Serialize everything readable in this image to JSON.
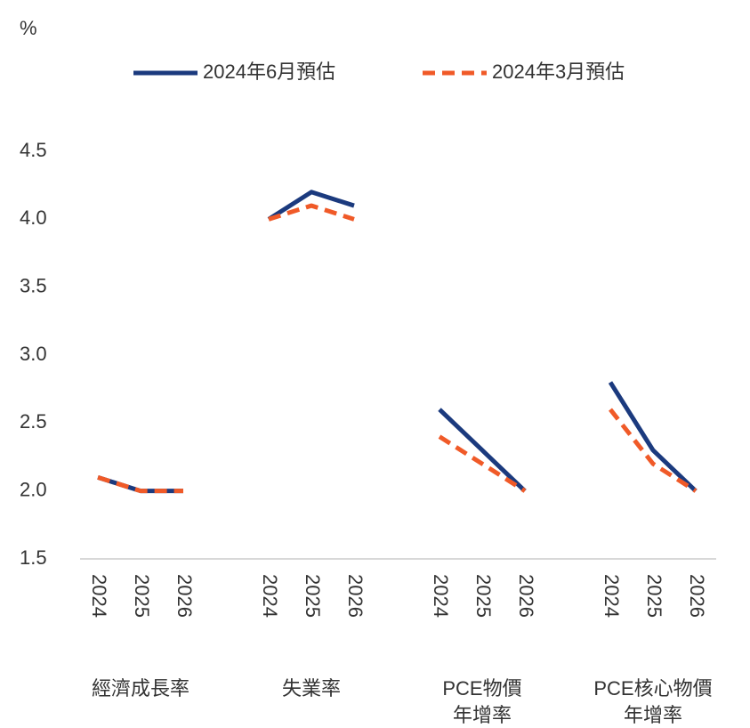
{
  "chart_data": {
    "type": "line",
    "y_unit": "%",
    "categories": [
      "2024",
      "2025",
      "2026",
      null,
      "2024",
      "2025",
      "2026",
      null,
      "2024",
      "2025",
      "2026",
      null,
      "2024",
      "2025",
      "2026"
    ],
    "group_labels": [
      [
        "經濟成長率"
      ],
      [
        "失業率"
      ],
      [
        "PCE物價",
        "年增率"
      ],
      [
        "PCE核心物價",
        "年增率"
      ]
    ],
    "series": [
      {
        "name": "2024年6月預估",
        "color": "#1b3a7e",
        "dash": false,
        "values": [
          2.1,
          2.0,
          2.0,
          null,
          4.0,
          4.2,
          4.1,
          null,
          2.6,
          2.3,
          2.0,
          null,
          2.8,
          2.3,
          2.0
        ]
      },
      {
        "name": "2024年3月預估",
        "color": "#f05a28",
        "dash": true,
        "values": [
          2.1,
          2.0,
          2.0,
          null,
          4.0,
          4.1,
          4.0,
          null,
          2.4,
          2.2,
          2.0,
          null,
          2.6,
          2.2,
          2.0
        ]
      }
    ],
    "ylim": [
      1.5,
      4.5
    ],
    "yticks": [
      {
        "value": 1.5,
        "label": "1.5"
      },
      {
        "value": 2,
        "label": "2.0"
      },
      2.5,
      {
        "value": 3,
        "label": "3.0"
      },
      3.5,
      {
        "value": 4,
        "label": "4.0"
      },
      4.5
    ],
    "grid": false,
    "legend": "top"
  }
}
